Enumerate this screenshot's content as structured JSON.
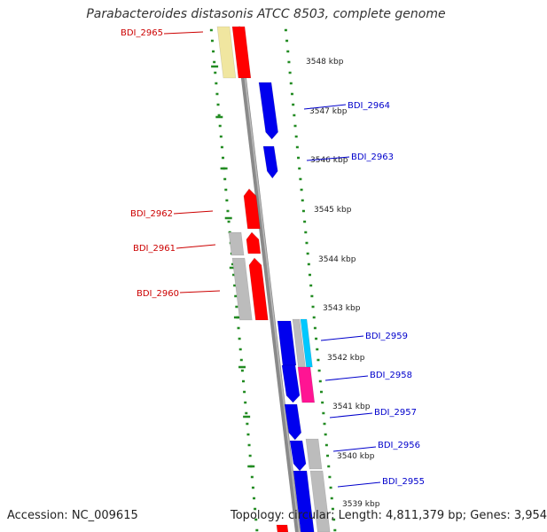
{
  "title": "Parabacteroides distasonis ATCC 8503, complete genome",
  "footer": {
    "accession": "Accession: NC_009615",
    "summary": "Topology: circular; Length: 4,811,379 bp; Genes: 3,954"
  },
  "colors": {
    "backbone": "#8a8a8a",
    "left_label": "#cc0000",
    "right_label": "#0000cc",
    "scale_dots": "#228B22",
    "ruler_text": "#222222"
  },
  "ruler": [
    {
      "label": "3548 kbp"
    },
    {
      "label": "3547 kbp"
    },
    {
      "label": "3546 kbp"
    },
    {
      "label": "3545 kbp"
    },
    {
      "label": "3544 kbp"
    },
    {
      "label": "3543 kbp"
    },
    {
      "label": "3542 kbp"
    },
    {
      "label": "3541 kbp"
    },
    {
      "label": "3540 kbp"
    },
    {
      "label": "3539 kbp"
    }
  ],
  "genes_left": [
    {
      "name": "BDI_2965"
    },
    {
      "name": "BDI_2962"
    },
    {
      "name": "BDI_2961"
    },
    {
      "name": "BDI_2960"
    }
  ],
  "genes_right": [
    {
      "name": "BDI_2964"
    },
    {
      "name": "BDI_2963"
    },
    {
      "name": "BDI_2959"
    },
    {
      "name": "BDI_2958"
    },
    {
      "name": "BDI_2957"
    },
    {
      "name": "BDI_2956"
    },
    {
      "name": "BDI_2955"
    }
  ]
}
